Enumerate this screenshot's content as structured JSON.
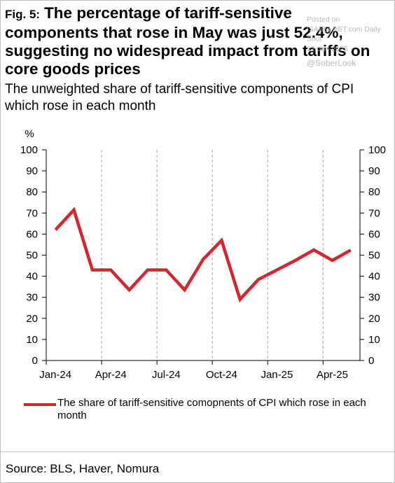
{
  "header": {
    "fig_label": "Fig. 5:",
    "title": "The percentage of tariff-sensitive components that rose in May was just 52.4%, suggesting no widespread impact from tariffs on core goods prices",
    "subtitle": "The unweighted share of tariff-sensitive components of CPI which rose in each month"
  },
  "watermark": {
    "line1": "Posted on",
    "line2": "ISABELNET.com",
    "line3": "Daily Shot",
    "line4": "12-Jun-2025",
    "handle": "@SoberLook"
  },
  "footer": {
    "source": "Source: BLS, Haver, Nomura"
  },
  "colors": {
    "series": "#d7252c",
    "grid": "#a6a6a6",
    "axis": "#000000"
  },
  "chart_data": {
    "type": "line",
    "ylabel": "%",
    "ylim": [
      0,
      100
    ],
    "yticks": [
      "0",
      "10",
      "20",
      "30",
      "40",
      "50",
      "60",
      "70",
      "80",
      "90",
      "100"
    ],
    "xtick_labels": [
      "Jan-24",
      "Apr-24",
      "Jul-24",
      "Oct-24",
      "Jan-25",
      "Apr-25"
    ],
    "x": [
      "Jan-24",
      "Feb-24",
      "Mar-24",
      "Apr-24",
      "May-24",
      "Jun-24",
      "Jul-24",
      "Aug-24",
      "Sep-24",
      "Oct-24",
      "Nov-24",
      "Dec-24",
      "Jan-25",
      "Feb-25",
      "Mar-25",
      "Apr-25",
      "May-25"
    ],
    "series": [
      {
        "name": "The share of tariff-sensitive comopnents of CPI which rose in each month",
        "values": [
          62,
          71.5,
          43,
          43,
          33.5,
          43,
          43,
          33.5,
          48,
          57,
          29,
          38.5,
          43,
          47.5,
          52.5,
          47.5,
          52.4
        ]
      }
    ],
    "grid": "vertical-dashed",
    "legend_position": "bottom"
  }
}
